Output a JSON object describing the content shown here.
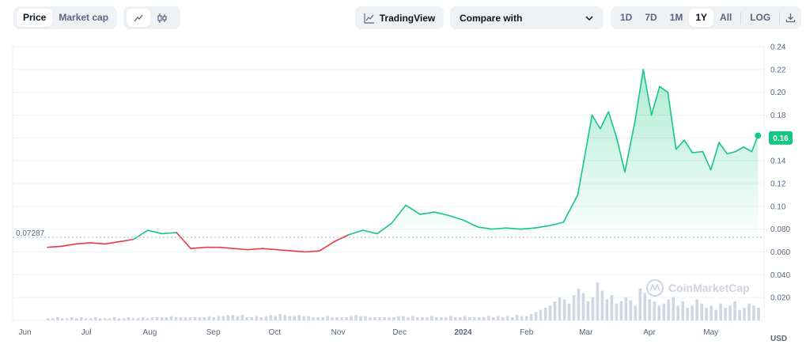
{
  "toolbar": {
    "price_label": "Price",
    "market_cap_label": "Market cap",
    "tradingview_label": "TradingView",
    "compare_label": "Compare with",
    "ranges": [
      "1D",
      "7D",
      "1M",
      "1Y",
      "All"
    ],
    "active_range": "1Y",
    "log_label": "LOG",
    "icons": {
      "line": "line-chart-icon",
      "candle": "candlestick-icon",
      "tradingview": "tradingview-icon",
      "chevron": "chevron-down-icon",
      "download": "download-icon"
    }
  },
  "watermark": "CoinMarketCap",
  "chart_data": {
    "type": "area",
    "x_ticks": [
      "Jun",
      "Jul",
      "Aug",
      "Sep",
      "Oct",
      "Nov",
      "Dec",
      "2024",
      "Feb",
      "Mar",
      "Apr",
      "May"
    ],
    "y_ticks": [
      "0.24",
      "0.22",
      "0.20",
      "0.18",
      "0.16",
      "0.14",
      "0.12",
      "0.10",
      "0.080",
      "0.060",
      "0.040",
      "0.020"
    ],
    "ylim": [
      0.0,
      0.24
    ],
    "reference_value": 0.07287,
    "reference_label": "0.07287",
    "current_value": 0.16,
    "current_label": "0.16",
    "currency": "USD",
    "colors": {
      "up": "#16c784",
      "down": "#ea3943",
      "grid": "#eff2f5"
    },
    "series": [
      {
        "x": [
          "2023-06-12",
          "2023-06-19",
          "2023-06-26",
          "2023-07-03",
          "2023-07-10",
          "2023-07-17",
          "2023-07-24",
          "2023-07-31",
          "2023-08-07",
          "2023-08-14",
          "2023-08-21",
          "2023-08-28",
          "2023-09-04",
          "2023-09-11",
          "2023-09-18",
          "2023-09-25",
          "2023-10-02",
          "2023-10-09",
          "2023-10-16",
          "2023-10-23",
          "2023-10-30",
          "2023-11-06",
          "2023-11-13",
          "2023-11-20",
          "2023-11-27",
          "2023-12-04",
          "2023-12-11",
          "2023-12-18",
          "2023-12-25",
          "2024-01-01",
          "2024-01-08",
          "2024-01-15",
          "2024-01-22",
          "2024-01-29",
          "2024-02-05",
          "2024-02-12",
          "2024-02-19",
          "2024-02-26",
          "2024-03-04",
          "2024-03-08",
          "2024-03-12",
          "2024-03-16",
          "2024-03-20",
          "2024-03-25",
          "2024-03-29",
          "2024-04-02",
          "2024-04-06",
          "2024-04-10",
          "2024-04-14",
          "2024-04-18",
          "2024-04-22",
          "2024-04-27",
          "2024-05-01",
          "2024-05-05",
          "2024-05-09",
          "2024-05-13",
          "2024-05-17",
          "2024-05-21",
          "2024-05-24"
        ],
        "values": [
          0.064,
          0.065,
          0.067,
          0.068,
          0.067,
          0.069,
          0.071,
          0.079,
          0.076,
          0.077,
          0.063,
          0.064,
          0.064,
          0.063,
          0.062,
          0.063,
          0.062,
          0.061,
          0.06,
          0.061,
          0.069,
          0.075,
          0.079,
          0.076,
          0.085,
          0.101,
          0.093,
          0.095,
          0.092,
          0.088,
          0.082,
          0.08,
          0.081,
          0.08,
          0.081,
          0.083,
          0.086,
          0.11,
          0.18,
          0.168,
          0.183,
          0.16,
          0.13,
          0.175,
          0.22,
          0.18,
          0.205,
          0.2,
          0.15,
          0.158,
          0.147,
          0.148,
          0.132,
          0.156,
          0.146,
          0.148,
          0.152,
          0.148,
          0.162
        ]
      }
    ],
    "volume": [
      2,
      2,
      3,
      2,
      2,
      3,
      2,
      3,
      2,
      2,
      3,
      2,
      2,
      2,
      3,
      2,
      2,
      3,
      2,
      2,
      3,
      2,
      3,
      3,
      3,
      3,
      4,
      3,
      3,
      3,
      3,
      3,
      3,
      3,
      4,
      3,
      4,
      4,
      5,
      5,
      4,
      5,
      3,
      3,
      4,
      3,
      4,
      5,
      4,
      6,
      5,
      4,
      4,
      5,
      4,
      4,
      3,
      3,
      3,
      4,
      3,
      3,
      3,
      3,
      4,
      5,
      4,
      4,
      3,
      3,
      3,
      3,
      3,
      3,
      4,
      4,
      3,
      4,
      3,
      3,
      3,
      4,
      3,
      3,
      3,
      4,
      3,
      3,
      4,
      3,
      3,
      3,
      3,
      4,
      3,
      4,
      3,
      4,
      3,
      5,
      4,
      4,
      6,
      8,
      10,
      12,
      14,
      18,
      22,
      20,
      16,
      24,
      30,
      26,
      18,
      22,
      36,
      28,
      20,
      24,
      16,
      18,
      22,
      19,
      14,
      30,
      26,
      20,
      18,
      14,
      16,
      20,
      22,
      14,
      18,
      12,
      14,
      20,
      16,
      12,
      14,
      10,
      16,
      12,
      14,
      18,
      10,
      12,
      16,
      14,
      12
    ]
  }
}
